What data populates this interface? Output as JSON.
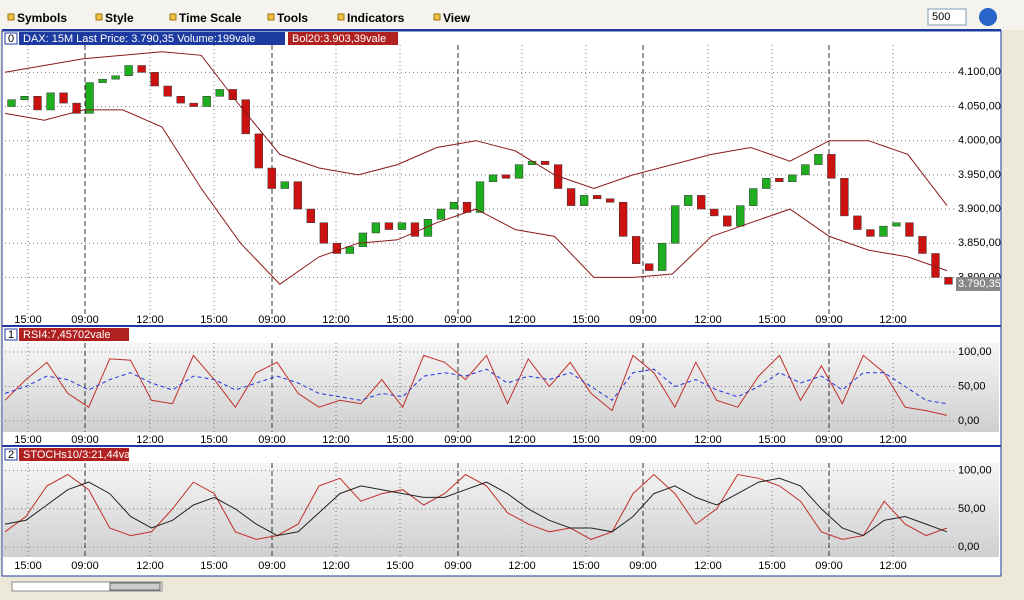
{
  "menu": [
    "Symbols",
    "Style",
    "Time Scale",
    "Tools",
    "Indicators",
    "View"
  ],
  "bars_input": "500",
  "panels": [
    {
      "index": "0",
      "labels": [
        "DAX: 15M Last Price: 3.790,35 Volume:199vale",
        "Bol20:3.903,39vale"
      ],
      "last_price": {
        "value": 3790.35,
        "label": "3.790,35"
      },
      "ylim": [
        3745,
        4140
      ],
      "yticks": [
        {
          "value": 3800,
          "label": "3.800,00"
        },
        {
          "value": 3850,
          "label": "3.850,00"
        },
        {
          "value": 3900,
          "label": "3.900,00"
        },
        {
          "value": 3950,
          "label": "3.950,00"
        },
        {
          "value": 4000,
          "label": "4.000,00"
        },
        {
          "value": 4050,
          "label": "4.050,00"
        },
        {
          "value": 4100,
          "label": "4.100,00"
        }
      ],
      "x_labels": [
        "15:00",
        "09:00",
        "12:00",
        "15:00",
        "09:00",
        "12:00",
        "15:00",
        "09:00",
        "12:00",
        "15:00",
        "09:00",
        "12:00",
        "15:00",
        "09:00",
        "12:00"
      ],
      "series": [
        {
          "type": "candlestick",
          "up_color": "#1fae1f",
          "down_color": "#cc1111",
          "open": [
            4050,
            4060,
            4065,
            4045,
            4070,
            4055,
            4040,
            4085,
            4090,
            4095,
            4110,
            4100,
            4080,
            4065,
            4055,
            4050,
            4065,
            4075,
            4060,
            4010,
            3960,
            3930,
            3940,
            3900,
            3880,
            3850,
            3835,
            3845,
            3865,
            3880,
            3870,
            3880,
            3860,
            3885,
            3900,
            3910,
            3895,
            3940,
            3950,
            3945,
            3965,
            3970,
            3965,
            3930,
            3905,
            3920,
            3915,
            3910,
            3860,
            3820,
            3810,
            3850,
            3905,
            3920,
            3900,
            3890,
            3875,
            3905,
            3930,
            3945,
            3940,
            3950,
            3965,
            3980,
            3945,
            3890,
            3870,
            3860,
            3875,
            3880,
            3860,
            3835,
            3800
          ],
          "close": [
            4060,
            4065,
            4045,
            4070,
            4055,
            4040,
            4085,
            4090,
            4095,
            4110,
            4100,
            4080,
            4065,
            4055,
            4050,
            4065,
            4075,
            4060,
            4010,
            3960,
            3930,
            3940,
            3900,
            3880,
            3850,
            3835,
            3845,
            3865,
            3880,
            3870,
            3880,
            3860,
            3885,
            3900,
            3910,
            3895,
            3940,
            3950,
            3945,
            3965,
            3970,
            3965,
            3930,
            3905,
            3920,
            3915,
            3910,
            3860,
            3820,
            3810,
            3850,
            3905,
            3920,
            3900,
            3890,
            3875,
            3905,
            3930,
            3945,
            3940,
            3950,
            3965,
            3980,
            3945,
            3890,
            3870,
            3860,
            3875,
            3880,
            3860,
            3835,
            3800,
            3790
          ]
        },
        {
          "type": "line",
          "color": "#8b1a1a",
          "values": [
            4100,
            4110,
            4120,
            4125,
            4130,
            4125,
            4050,
            3980,
            3960,
            3950,
            3965,
            3990,
            4000,
            3985,
            3950,
            3930,
            3950,
            3965,
            3980,
            3990,
            3970,
            4000,
            4000,
            3980,
            3905
          ]
        },
        {
          "type": "line",
          "color": "#8b1a1a",
          "values": [
            4040,
            4030,
            4045,
            4045,
            4020,
            3930,
            3850,
            3790,
            3830,
            3850,
            3855,
            3880,
            3900,
            3870,
            3860,
            3800,
            3800,
            3805,
            3860,
            3880,
            3900,
            3860,
            3840,
            3830,
            3810
          ]
        }
      ]
    },
    {
      "index": "1",
      "labels": [
        "RSI4:7,45702vale"
      ],
      "ylim": [
        -16,
        113
      ],
      "yticks": [
        {
          "value": 0,
          "label": "0,00"
        },
        {
          "value": 50,
          "label": "50,00"
        },
        {
          "value": 100,
          "label": "100,00"
        }
      ],
      "x_labels": [
        "15:00",
        "09:00",
        "12:00",
        "15:00",
        "09:00",
        "12:00",
        "15:00",
        "09:00",
        "12:00",
        "15:00",
        "09:00",
        "12:00",
        "15:00",
        "09:00",
        "12:00"
      ],
      "series": [
        {
          "type": "line",
          "color": "#c0302a",
          "values": [
            30,
            60,
            85,
            40,
            20,
            90,
            88,
            30,
            25,
            95,
            60,
            20,
            70,
            85,
            40,
            20,
            30,
            25,
            60,
            20,
            95,
            85,
            60,
            95,
            25,
            90,
            50,
            85,
            40,
            15,
            95,
            70,
            20,
            85,
            30,
            20,
            65,
            95,
            30,
            80,
            25,
            95,
            70,
            20,
            15,
            8
          ]
        },
        {
          "type": "line",
          "color": "#2233dd",
          "dashed": true,
          "values": [
            40,
            50,
            65,
            60,
            45,
            60,
            70,
            55,
            45,
            65,
            60,
            45,
            55,
            65,
            55,
            40,
            35,
            30,
            40,
            35,
            65,
            70,
            65,
            75,
            55,
            65,
            60,
            70,
            50,
            30,
            70,
            75,
            50,
            60,
            45,
            35,
            50,
            70,
            55,
            65,
            45,
            70,
            70,
            50,
            30,
            25
          ]
        }
      ]
    },
    {
      "index": "2",
      "labels": [
        "STOCHs10/3:21,44vale"
      ],
      "ylim": [
        -13,
        110
      ],
      "yticks": [
        {
          "value": 0,
          "label": "0,00"
        },
        {
          "value": 50,
          "label": "50,00"
        },
        {
          "value": 100,
          "label": "100,00"
        }
      ],
      "x_labels": [
        "15:00",
        "09:00",
        "12:00",
        "15:00",
        "09:00",
        "12:00",
        "15:00",
        "09:00",
        "12:00",
        "15:00",
        "09:00",
        "12:00",
        "15:00",
        "09:00",
        "12:00"
      ],
      "series": [
        {
          "type": "line",
          "color": "#c0302a",
          "values": [
            20,
            40,
            80,
            95,
            75,
            25,
            15,
            20,
            50,
            85,
            70,
            20,
            10,
            15,
            30,
            80,
            90,
            60,
            70,
            75,
            55,
            70,
            95,
            80,
            45,
            30,
            20,
            25,
            10,
            20,
            70,
            95,
            70,
            30,
            50,
            95,
            90,
            80,
            60,
            20,
            10,
            15,
            60,
            30,
            15,
            25
          ]
        },
        {
          "type": "line",
          "color": "#222222",
          "values": [
            30,
            35,
            55,
            75,
            85,
            70,
            40,
            25,
            35,
            55,
            65,
            50,
            30,
            15,
            20,
            45,
            70,
            80,
            75,
            70,
            65,
            65,
            75,
            85,
            70,
            50,
            35,
            25,
            25,
            20,
            40,
            70,
            80,
            65,
            55,
            70,
            85,
            90,
            80,
            50,
            25,
            15,
            35,
            40,
            30,
            20
          ]
        }
      ]
    }
  ]
}
